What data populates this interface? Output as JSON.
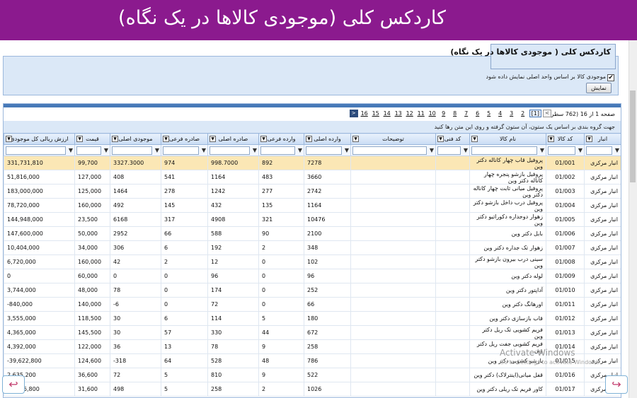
{
  "header": {
    "title": "کاردکس کلی (موجودی کالاها در یک نگاه)"
  },
  "panel": {
    "title": "کاردکس کلی ( موجودی کالاها در یک نگاه)",
    "checkbox_label": "موجودی کالا بر اساس واحد اصلی نمایش داده شود",
    "checkbox_checked": "✔",
    "show_button": "نمایش"
  },
  "pager": {
    "info": "صفحه 1 از 16 (762 سطر)",
    "pages": [
      "1",
      "2",
      "3",
      "4",
      "5",
      "6",
      "7",
      "8",
      "9",
      "10",
      "11",
      "12",
      "13",
      "14",
      "15",
      "16"
    ],
    "current": "1",
    "prev": "<",
    "next": ">"
  },
  "grouping_hint": "جهت گروه بندی بر اساس یک ستون، آن ستون گرفته و روی این متن رها کنید",
  "columns": [
    "انبار",
    "کد کالا",
    "نام کالا",
    "کد فنی",
    "توضیحات",
    "وارده اصلی",
    "وارده فرعی",
    "صادره اصلی",
    "صادره فرعی",
    "موجودی اصلی",
    "قیمت",
    "ارزش ریالی کل موجودی"
  ],
  "rows": [
    [
      "انبار مرکزی",
      "01/001",
      "پروفیل قاب چهار کاناله دکتر وین",
      "",
      "",
      "7278",
      "892",
      "998.7000",
      "974",
      "3327.3000",
      "99,700",
      "331,731,810"
    ],
    [
      "انبار مرکزی",
      "01/002",
      "پروفیل بازشو پنجره چهار کاناله دکتر وین",
      "",
      "",
      "3660",
      "483",
      "1164",
      "541",
      "408",
      "127,000",
      "51,816,000"
    ],
    [
      "انبار مرکزی",
      "01/003",
      "پروفیل میانی ثابت چهار کاناله دکتر وین",
      "",
      "",
      "2742",
      "277",
      "1242",
      "278",
      "1464",
      "125,000",
      "183,000,000"
    ],
    [
      "انبار مرکزی",
      "01/004",
      "پروفیل درب داخل بازشو دکتر وین",
      "",
      "",
      "1164",
      "135",
      "432",
      "145",
      "492",
      "160,000",
      "78,720,000"
    ],
    [
      "انبار مرکزی",
      "01/005",
      "زهوار دوجداره دکوراتیو دکتر وین",
      "",
      "",
      "10476",
      "321",
      "4908",
      "317",
      "6168",
      "23,500",
      "144,948,000"
    ],
    [
      "انبار مرکزی",
      "01/006",
      "بابل دکتر وین",
      "",
      "",
      "2100",
      "90",
      "588",
      "66",
      "2952",
      "50,000",
      "147,600,000"
    ],
    [
      "انبار مرکزی",
      "01/007",
      "زهوار تک جداره دکتر وین",
      "",
      "",
      "348",
      "2",
      "192",
      "6",
      "306",
      "34,000",
      "10,404,000"
    ],
    [
      "انبار مرکزی",
      "01/008",
      "سینی درب بیرون بازشو دکتر وین",
      "",
      "",
      "102",
      "0",
      "12",
      "2",
      "42",
      "160,000",
      "6,720,000"
    ],
    [
      "انبار مرکزی",
      "01/009",
      "لوله دکتر وین",
      "",
      "",
      "96",
      "0",
      "96",
      "0",
      "0",
      "60,000",
      "0"
    ],
    [
      "انبار مرکزی",
      "01/010",
      "آداپتور دکتر وین",
      "",
      "",
      "252",
      "0",
      "174",
      "0",
      "78",
      "48,000",
      "3,744,000"
    ],
    [
      "انبار مرکزی",
      "01/011",
      "اورهانگ دکتر وین",
      "",
      "",
      "66",
      "0",
      "72",
      "0",
      "-6",
      "140,000",
      "-840,000"
    ],
    [
      "انبار مرکزی",
      "01/012",
      "قاب بازسازی دکتر وین",
      "",
      "",
      "180",
      "5",
      "114",
      "6",
      "30",
      "118,500",
      "3,555,000"
    ],
    [
      "انبار مرکزی",
      "01/013",
      "فریم کشویی تک ریل دکتر وین",
      "",
      "",
      "672",
      "44",
      "330",
      "57",
      "30",
      "145,500",
      "4,365,000"
    ],
    [
      "انبار مرکزی",
      "01/014",
      "فریم کشویی جفت ریل دکتر وین",
      "",
      "",
      "258",
      "9",
      "78",
      "13",
      "36",
      "122,000",
      "4,392,000"
    ],
    [
      "انبار مرکزی",
      "01/015",
      "بازشو کشویی دکتر وین",
      "",
      "",
      "786",
      "48",
      "528",
      "64",
      "-318",
      "124,600",
      "-39,622,800"
    ],
    [
      "انبار مرکزی",
      "01/016",
      "قفل میانی(اینترلاک) دکتر وین",
      "",
      "",
      "522",
      "9",
      "810",
      "5",
      "72",
      "36,600",
      "2,635,200"
    ],
    [
      "انبار مرکزی",
      "01/017",
      "کاور فریم تک ریلی دکتر وین",
      "",
      "",
      "1026",
      "2",
      "258",
      "5",
      "498",
      "31,600",
      "15,736,800"
    ]
  ],
  "watermark": {
    "line1": "Activate Windows",
    "line2": "Go to Settings to activate Windows."
  },
  "icons": {
    "nav_left": "return-arrow-icon",
    "nav_right": "return-arrow-icon",
    "funnel": "filter-icon"
  }
}
